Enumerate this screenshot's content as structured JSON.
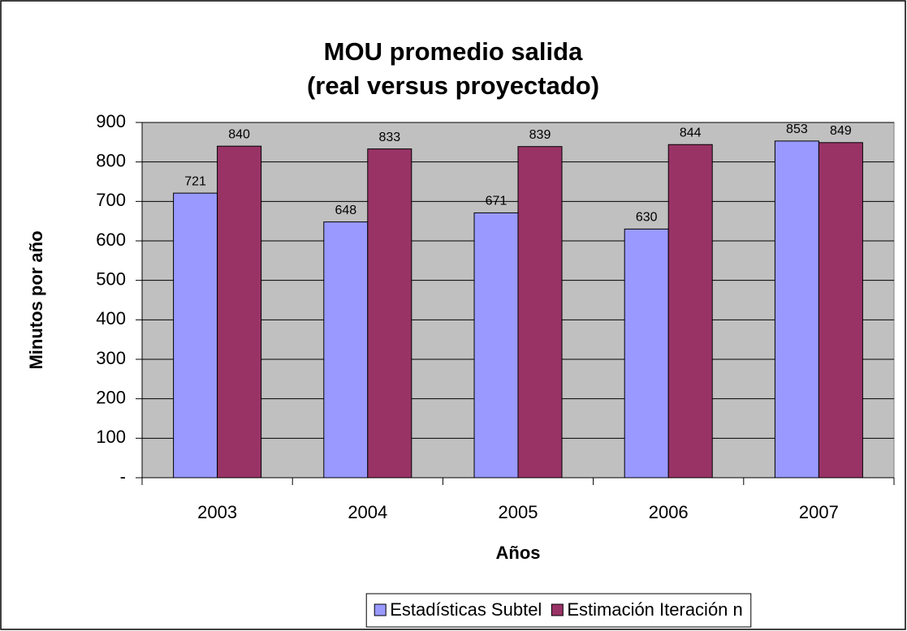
{
  "chart_data": {
    "type": "bar",
    "title": "MOU promedio salida",
    "subtitle": "(real versus proyectado)",
    "x_label": "Años",
    "y_label": "Minutos por año",
    "categories": [
      "2003",
      "2004",
      "2005",
      "2006",
      "2007"
    ],
    "series": [
      {
        "name": "Estadísticas Subtel",
        "color": "#9999ff",
        "values": [
          721,
          648,
          671,
          630,
          853
        ]
      },
      {
        "name": "Estimación Iteración n",
        "color": "#993366",
        "values": [
          840,
          833,
          839,
          844,
          849
        ]
      }
    ],
    "ylim": [
      0,
      900
    ],
    "yticks": [
      {
        "value": 0,
        "label": "-"
      },
      100,
      200,
      300,
      400,
      500,
      600,
      700,
      800,
      900
    ],
    "grid": true,
    "legend": "bottom"
  }
}
